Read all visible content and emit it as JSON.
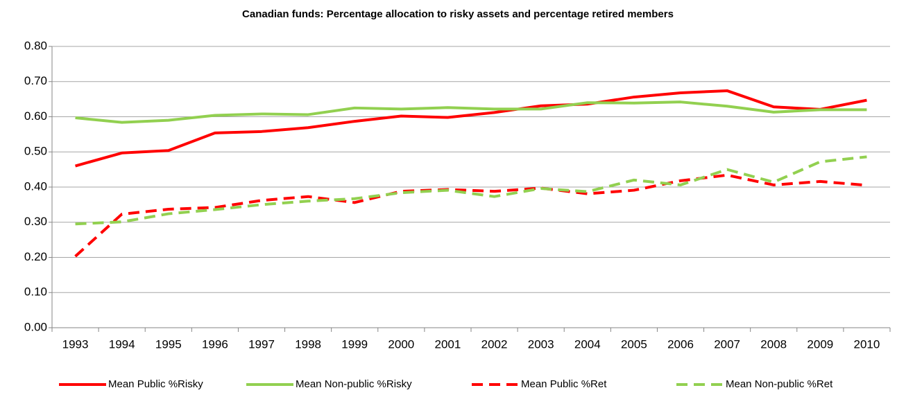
{
  "chart_data": {
    "type": "line",
    "title": "Canadian funds: Percentage allocation to risky assets and percentage retired members",
    "categories": [
      "1993",
      "1994",
      "1995",
      "1996",
      "1997",
      "1998",
      "1999",
      "2000",
      "2001",
      "2002",
      "2003",
      "2004",
      "2005",
      "2006",
      "2007",
      "2008",
      "2009",
      "2010"
    ],
    "series": [
      {
        "name": "Mean Public %Risky",
        "color": "#ff0000",
        "dashed": false,
        "values": [
          0.46,
          0.497,
          0.504,
          0.554,
          0.558,
          0.569,
          0.587,
          0.602,
          0.598,
          0.612,
          0.631,
          0.636,
          0.656,
          0.668,
          0.674,
          0.628,
          0.621,
          0.647
        ]
      },
      {
        "name": "Mean Non-public %Risky",
        "color": "#92d050",
        "dashed": false,
        "values": [
          0.597,
          0.584,
          0.59,
          0.604,
          0.608,
          0.606,
          0.625,
          0.622,
          0.626,
          0.622,
          0.622,
          0.64,
          0.639,
          0.642,
          0.63,
          0.613,
          0.62,
          0.62
        ]
      },
      {
        "name": "Mean Public %Ret",
        "color": "#ff0000",
        "dashed": true,
        "values": [
          0.203,
          0.323,
          0.337,
          0.342,
          0.362,
          0.373,
          0.356,
          0.388,
          0.393,
          0.388,
          0.397,
          0.381,
          0.391,
          0.418,
          0.434,
          0.406,
          0.416,
          0.405
        ]
      },
      {
        "name": "Mean Non-public %Ret",
        "color": "#92d050",
        "dashed": true,
        "values": [
          0.295,
          0.301,
          0.324,
          0.336,
          0.35,
          0.36,
          0.367,
          0.384,
          0.391,
          0.373,
          0.396,
          0.387,
          0.42,
          0.406,
          0.45,
          0.414,
          0.472,
          0.486
        ]
      }
    ],
    "ylim": [
      0,
      0.8
    ],
    "yticks": [
      {
        "value": 0,
        "label": "0.00"
      },
      {
        "value": 0.1,
        "label": "0.10"
      },
      {
        "value": 0.2,
        "label": "0.20"
      },
      {
        "value": 0.3,
        "label": "0.30"
      },
      {
        "value": 0.4,
        "label": "0.40"
      },
      {
        "value": 0.5,
        "label": "0.50"
      },
      {
        "value": 0.6,
        "label": "0.60"
      },
      {
        "value": 0.7,
        "label": "0.70"
      },
      {
        "value": 0.8,
        "label": "0.80"
      }
    ],
    "grid": true,
    "legend": "bottom"
  }
}
